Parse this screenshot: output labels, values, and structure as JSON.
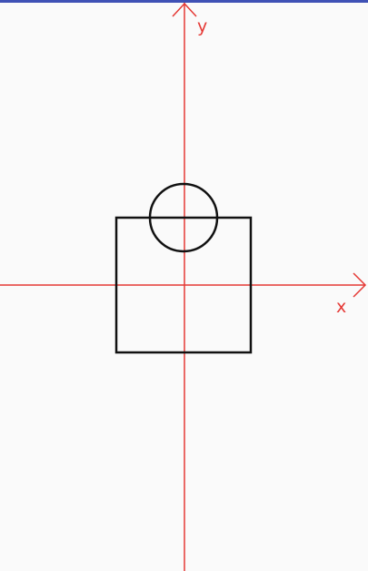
{
  "colors": {
    "background": "#fafafa",
    "top_strip": "#3f51b5",
    "axis": "#e53935",
    "shape": "#111111"
  },
  "axes": {
    "x_label": "x",
    "y_label": "y"
  },
  "shapes": [
    {
      "type": "square",
      "name": "square-shape"
    },
    {
      "type": "circle",
      "name": "circle-shape"
    }
  ]
}
